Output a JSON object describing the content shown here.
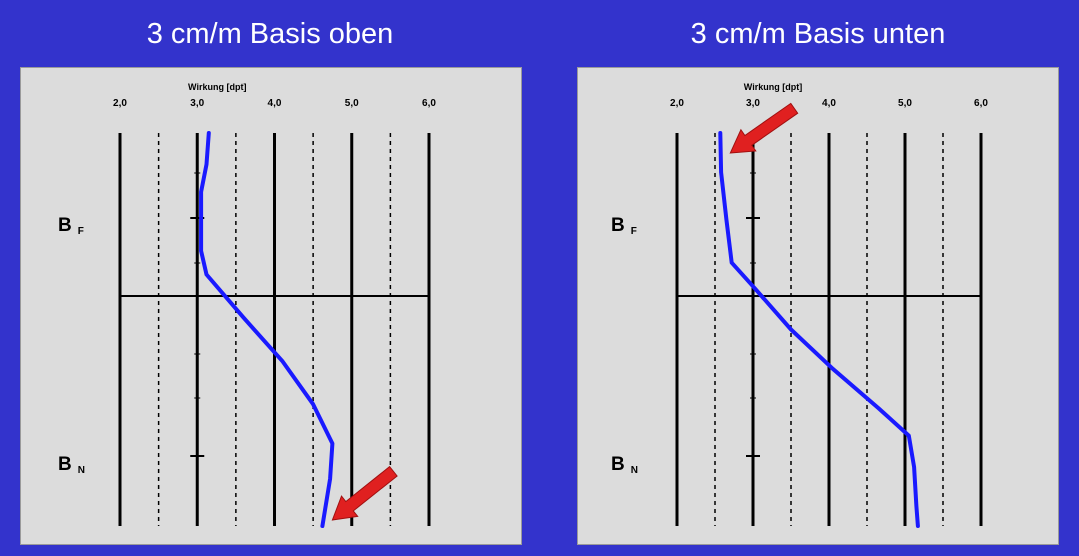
{
  "chart_data": [
    {
      "type": "line",
      "title": "3 cm/m Basis oben",
      "xlabel": "Wirkung [dpt]",
      "xticks": [
        "2,0",
        "3,0",
        "4,0",
        "5,0",
        "6,0"
      ],
      "xlim": [
        2.0,
        6.0
      ],
      "ylim": [
        0,
        100
      ],
      "y_markers": [
        "B F",
        "B N"
      ],
      "grid": "solid at whole dpt, dashed at half dpt",
      "series": [
        {
          "color": "#1a1aff",
          "points": [
            {
              "x": 3.15,
              "y": 0
            },
            {
              "x": 3.12,
              "y": 8
            },
            {
              "x": 3.05,
              "y": 15
            },
            {
              "x": 3.05,
              "y": 22
            },
            {
              "x": 3.05,
              "y": 30
            },
            {
              "x": 3.12,
              "y": 36
            },
            {
              "x": 3.6,
              "y": 47
            },
            {
              "x": 4.1,
              "y": 58
            },
            {
              "x": 4.5,
              "y": 69
            },
            {
              "x": 4.75,
              "y": 79
            },
            {
              "x": 4.72,
              "y": 88
            },
            {
              "x": 4.62,
              "y": 100
            }
          ]
        }
      ],
      "annotation": "red arrow pointing to lower end of curve"
    },
    {
      "type": "line",
      "title": "3 cm/m Basis unten",
      "xlabel": "Wirkung [dpt]",
      "xticks": [
        "2,0",
        "3,0",
        "4,0",
        "5,0",
        "6,0"
      ],
      "xlim": [
        2.0,
        6.0
      ],
      "ylim": [
        0,
        100
      ],
      "y_markers": [
        "B F",
        "B N"
      ],
      "grid": "solid at whole dpt, dashed at half dpt",
      "series": [
        {
          "color": "#1a1aff",
          "points": [
            {
              "x": 2.57,
              "y": 0
            },
            {
              "x": 2.58,
              "y": 10
            },
            {
              "x": 2.65,
              "y": 22
            },
            {
              "x": 2.72,
              "y": 33
            },
            {
              "x": 3.0,
              "y": 39
            },
            {
              "x": 3.5,
              "y": 50
            },
            {
              "x": 4.05,
              "y": 60
            },
            {
              "x": 4.65,
              "y": 70
            },
            {
              "x": 5.05,
              "y": 77
            },
            {
              "x": 5.12,
              "y": 85
            },
            {
              "x": 5.15,
              "y": 95
            },
            {
              "x": 5.17,
              "y": 100
            }
          ]
        }
      ],
      "annotation": "red arrow pointing to upper end of curve"
    }
  ],
  "colors": {
    "background": "#3333cc",
    "panel": "#dcdcdc",
    "curve": "#1a1aff",
    "arrow": "#e02020"
  }
}
